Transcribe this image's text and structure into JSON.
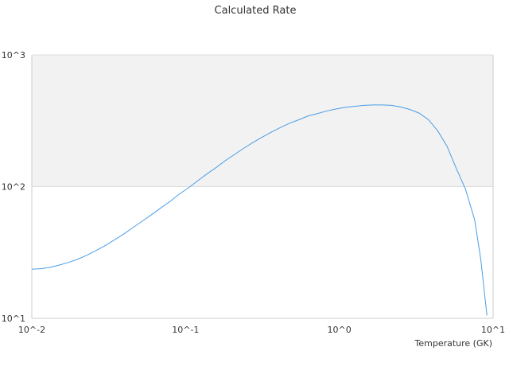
{
  "chart_data": {
    "type": "line",
    "title": "Calculated Rate",
    "xlabel": "Temperature (GK)",
    "ylabel": "",
    "x_scale": "log",
    "y_scale": "log",
    "xlim": [
      0.01,
      10
    ],
    "ylim": [
      10,
      1000
    ],
    "x_ticks": [
      {
        "value": 0.01,
        "label": "10^-2"
      },
      {
        "value": 0.1,
        "label": "10^-1"
      },
      {
        "value": 1,
        "label": "10^0"
      },
      {
        "value": 10,
        "label": "10^1"
      }
    ],
    "y_ticks": [
      {
        "value": 10,
        "label": "10^1"
      },
      {
        "value": 100,
        "label": "10^2"
      },
      {
        "value": 1000,
        "label": "10^3"
      }
    ],
    "band": {
      "from": 100,
      "to": 1000,
      "color": "#f2f2f2"
    },
    "grid": true,
    "legend": "none",
    "colors": {
      "line": "#4a9de8",
      "axis": "#cccccc",
      "grid": "#dddddd"
    },
    "series": [
      {
        "points": [
          [
            0.01,
            23.6
          ],
          [
            0.0115,
            23.8
          ],
          [
            0.0132,
            24.4
          ],
          [
            0.0151,
            25.4
          ],
          [
            0.0174,
            26.6
          ],
          [
            0.02,
            28.2
          ],
          [
            0.0229,
            30.2
          ],
          [
            0.0263,
            32.8
          ],
          [
            0.0302,
            35.8
          ],
          [
            0.0347,
            39.6
          ],
          [
            0.0398,
            43.8
          ],
          [
            0.0457,
            49.0
          ],
          [
            0.0525,
            54.9
          ],
          [
            0.0603,
            61.4
          ],
          [
            0.0692,
            69.0
          ],
          [
            0.0794,
            77.3
          ],
          [
            0.0912,
            87.9
          ],
          [
            0.1047,
            98.1
          ],
          [
            0.1202,
            111.0
          ],
          [
            0.138,
            125.0
          ],
          [
            0.1585,
            140.0
          ],
          [
            0.182,
            158.0
          ],
          [
            0.2089,
            176.0
          ],
          [
            0.2399,
            196.0
          ],
          [
            0.2754,
            217.0
          ],
          [
            0.3162,
            238.0
          ],
          [
            0.3631,
            260.0
          ],
          [
            0.4169,
            282.0
          ],
          [
            0.4786,
            304.0
          ],
          [
            0.5495,
            323.0
          ],
          [
            0.631,
            345.0
          ],
          [
            0.7244,
            359.0
          ],
          [
            0.8318,
            376.0
          ],
          [
            0.955,
            389.0
          ],
          [
            1.096,
            400.0
          ],
          [
            1.259,
            407.0
          ],
          [
            1.445,
            414.0
          ],
          [
            1.66,
            417.0
          ],
          [
            1.905,
            417.0
          ],
          [
            2.188,
            414.0
          ],
          [
            2.512,
            402.0
          ],
          [
            2.884,
            385.0
          ],
          [
            3.311,
            361.0
          ],
          [
            3.802,
            322.0
          ],
          [
            4.365,
            265.0
          ],
          [
            5.012,
            203.0
          ],
          [
            5.754,
            138.0
          ],
          [
            6.607,
            96.0
          ],
          [
            7.586,
            56.0
          ],
          [
            8.318,
            28.0
          ],
          [
            9.12,
            10.5
          ]
        ]
      }
    ]
  }
}
